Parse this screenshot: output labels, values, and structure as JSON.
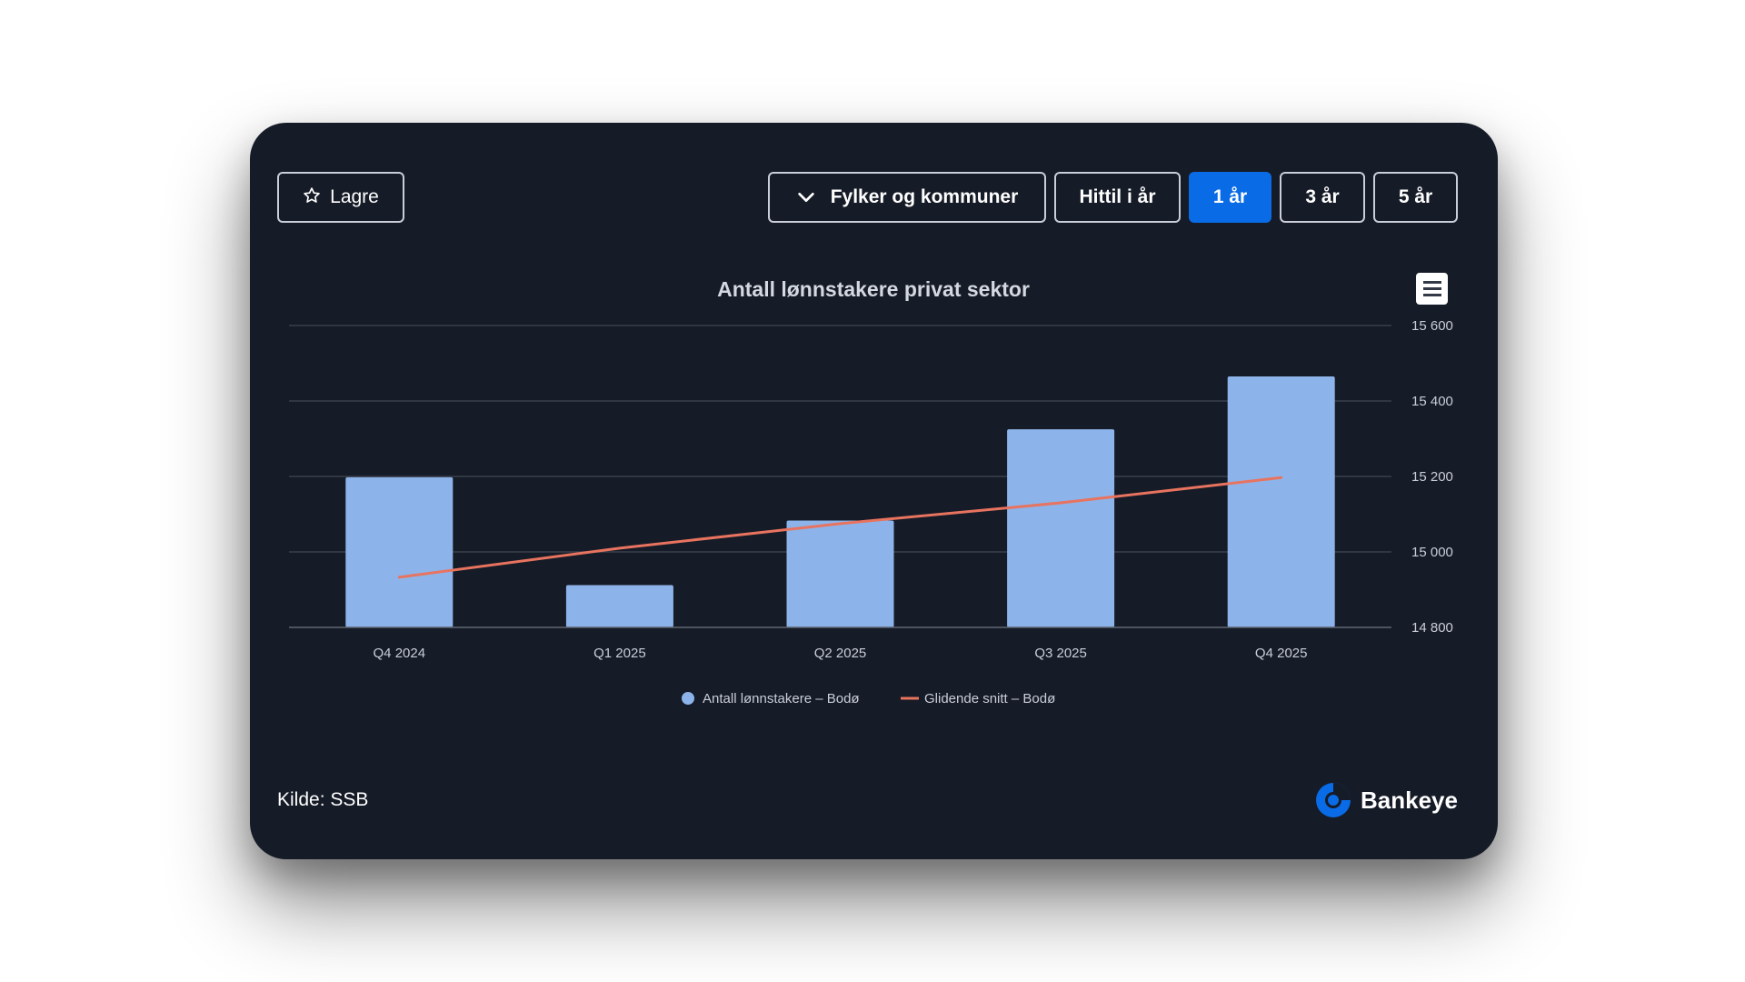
{
  "toolbar": {
    "save_label": "Lagre",
    "region_label": "Fylker og kommuner",
    "ytd_label": "Hittil i år",
    "y1_label": "1 år",
    "y3_label": "3 år",
    "y5_label": "5 år",
    "active_range": "1 år"
  },
  "icons": {
    "save": "star-icon",
    "region": "chevron-down-icon",
    "menu": "hamburger-menu-icon",
    "brand": "bankeye-logo-icon"
  },
  "colors": {
    "background": "#151b27",
    "active_button": "#0a6be6",
    "bar": "#8db4ea",
    "line": "#e8735f",
    "grid": "#3a404c",
    "text": "#c9ced8"
  },
  "chart_data": {
    "type": "bar",
    "title": "Antall lønnstakere privat sektor",
    "xlabel": "",
    "ylabel": "",
    "categories": [
      "Q4 2024",
      "Q1 2025",
      "Q2 2025",
      "Q3 2025",
      "Q4 2025"
    ],
    "y_ticks": [
      "15 600",
      "15 400",
      "15 200",
      "15 000",
      "14 800"
    ],
    "y_tick_values": [
      15600,
      15400,
      15200,
      15000,
      14800
    ],
    "ylim": [
      14800,
      15600
    ],
    "y_axis_side": "right",
    "grid": true,
    "legend_position": "bottom",
    "series": [
      {
        "name": "Antall lønnstakere – Bodø",
        "type": "bar",
        "color": "#8db4ea",
        "values": [
          15198,
          14912,
          15083,
          15325,
          15465
        ]
      },
      {
        "name": "Glidende snitt – Bodø",
        "type": "line",
        "color": "#e8735f",
        "values": [
          14933,
          15010,
          15075,
          15130,
          15197
        ]
      }
    ]
  },
  "footer": {
    "source": "Kilde: SSB",
    "brand": "Bankeye"
  }
}
